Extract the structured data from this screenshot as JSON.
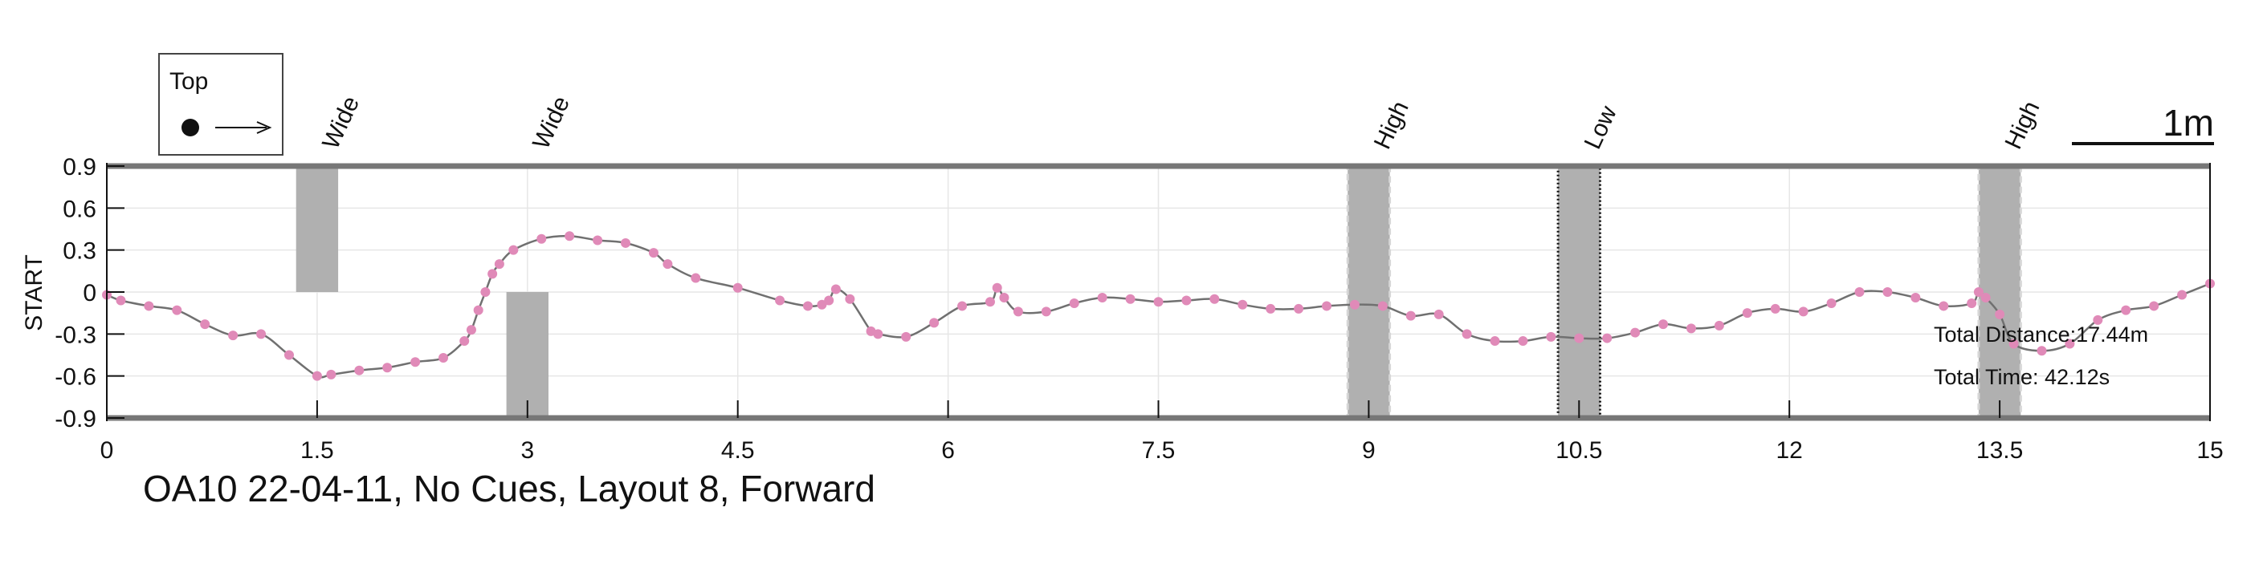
{
  "chart_data": {
    "type": "line",
    "title": "OA10 22-04-11, No Cues, Layout 8, Forward",
    "xlabel": "",
    "ylabel": "START",
    "xlim": [
      0,
      15
    ],
    "ylim": [
      -0.9,
      0.9
    ],
    "xticks": [
      {
        "v": 0,
        "label": "0"
      },
      {
        "v": 1.5,
        "label": "1.5"
      },
      {
        "v": 3,
        "label": "3"
      },
      {
        "v": 4.5,
        "label": "4.5"
      },
      {
        "v": 6,
        "label": "6"
      },
      {
        "v": 7.5,
        "label": "7.5"
      },
      {
        "v": 9,
        "label": "9"
      },
      {
        "v": 10.5,
        "label": "10.5"
      },
      {
        "v": 12,
        "label": "12"
      },
      {
        "v": 13.5,
        "label": "13.5"
      },
      {
        "v": 15,
        "label": "15"
      }
    ],
    "yticks": [
      {
        "v": 0.9,
        "label": "0.9"
      },
      {
        "v": 0.6,
        "label": "0.6"
      },
      {
        "v": 0.3,
        "label": "0.3"
      },
      {
        "v": 0,
        "label": "0"
      },
      {
        "v": -0.3,
        "label": "-0.3"
      },
      {
        "v": -0.6,
        "label": "-0.6"
      },
      {
        "v": -0.9,
        "label": "-0.9"
      }
    ],
    "grid": true,
    "legend": {
      "label": "Top",
      "position": "top-left"
    },
    "scale_bar_label": "1m",
    "colors": {
      "path": "#707070",
      "markers": "#e08ab8",
      "obstacle": "#b0b0b0",
      "boundary": "#777777"
    },
    "obstacles": [
      {
        "label": "Wide",
        "x0": 1.35,
        "x1": 1.65,
        "y0": 0,
        "y1": 0.9,
        "border": "none"
      },
      {
        "label": "Wide",
        "x0": 2.85,
        "x1": 3.15,
        "y0": -0.9,
        "y1": 0,
        "border": "none"
      },
      {
        "label": "High",
        "x0": 8.85,
        "x1": 9.15,
        "y0": -0.9,
        "y1": 0.9,
        "border": "dashed"
      },
      {
        "label": "Low",
        "x0": 10.35,
        "x1": 10.65,
        "y0": -0.9,
        "y1": 0.9,
        "border": "dotted"
      },
      {
        "label": "High",
        "x0": 13.35,
        "x1": 13.65,
        "y0": -0.9,
        "y1": 0.9,
        "border": "dashed"
      }
    ],
    "series": [
      {
        "x": [
          0,
          0.1,
          0.3,
          0.5,
          0.7,
          0.9,
          1.1,
          1.3,
          1.5,
          1.6,
          1.8,
          2.0,
          2.2,
          2.4,
          2.55,
          2.6,
          2.65,
          2.7,
          2.75,
          2.8,
          2.9,
          3.1,
          3.3,
          3.5,
          3.7,
          3.9,
          4.0,
          4.2,
          4.5,
          4.8,
          5.0,
          5.1,
          5.15,
          5.2,
          5.3,
          5.45,
          5.5,
          5.7,
          5.9,
          6.1,
          6.3,
          6.35,
          6.4,
          6.5,
          6.7,
          6.9,
          7.1,
          7.3,
          7.5,
          7.7,
          7.9,
          8.1,
          8.3,
          8.5,
          8.7,
          8.9,
          9.1,
          9.3,
          9.5,
          9.7,
          9.9,
          10.1,
          10.3,
          10.5,
          10.7,
          10.9,
          11.1,
          11.3,
          11.5,
          11.7,
          11.9,
          12.1,
          12.3,
          12.5,
          12.7,
          12.9,
          13.1,
          13.3,
          13.35,
          13.4,
          13.5,
          13.6,
          13.8,
          14.0,
          14.2,
          14.4,
          14.6,
          14.8,
          15.0
        ],
        "y": [
          -0.02,
          -0.06,
          -0.1,
          -0.13,
          -0.23,
          -0.31,
          -0.3,
          -0.45,
          -0.6,
          -0.59,
          -0.56,
          -0.54,
          -0.5,
          -0.47,
          -0.35,
          -0.27,
          -0.13,
          0.0,
          0.13,
          0.2,
          0.3,
          0.38,
          0.4,
          0.37,
          0.35,
          0.28,
          0.2,
          0.1,
          0.03,
          -0.06,
          -0.1,
          -0.09,
          -0.06,
          0.02,
          -0.05,
          -0.28,
          -0.3,
          -0.32,
          -0.22,
          -0.1,
          -0.07,
          0.03,
          -0.04,
          -0.14,
          -0.14,
          -0.08,
          -0.04,
          -0.05,
          -0.07,
          -0.06,
          -0.05,
          -0.09,
          -0.12,
          -0.12,
          -0.1,
          -0.09,
          -0.1,
          -0.17,
          -0.16,
          -0.3,
          -0.35,
          -0.35,
          -0.32,
          -0.33,
          -0.33,
          -0.29,
          -0.23,
          -0.26,
          -0.24,
          -0.15,
          -0.12,
          -0.14,
          -0.08,
          0.0,
          0.0,
          -0.04,
          -0.1,
          -0.08,
          0.0,
          -0.04,
          -0.16,
          -0.37,
          -0.42,
          -0.37,
          -0.2,
          -0.13,
          -0.1,
          -0.02,
          0.06
        ]
      }
    ]
  },
  "stats": {
    "distance": "Total Distance:17.44m",
    "time": "Total Time: 42.12s"
  }
}
